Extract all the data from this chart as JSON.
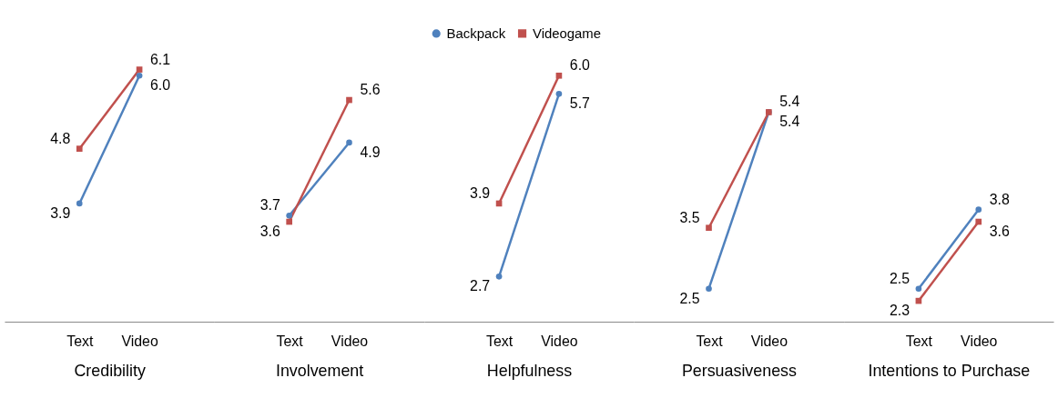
{
  "chart_data": [
    {
      "type": "line",
      "xlabel": "Credibility",
      "categories": [
        "Text",
        "Video"
      ],
      "legend": "top",
      "grid": false,
      "series": [
        {
          "name": "Backpack",
          "color": "#4f81bd",
          "marker": "circle",
          "values": [
            3.9,
            6.0
          ],
          "value_labels": [
            "3.9",
            "6.0"
          ]
        },
        {
          "name": "Videogame",
          "color": "#c0504d",
          "marker": "square",
          "values": [
            4.8,
            6.1
          ],
          "value_labels": [
            "4.8",
            "6.1"
          ]
        }
      ]
    },
    {
      "type": "line",
      "xlabel": "Involvement",
      "categories": [
        "Text",
        "Video"
      ],
      "legend": "top",
      "grid": false,
      "series": [
        {
          "name": "Backpack",
          "color": "#4f81bd",
          "marker": "circle",
          "values": [
            3.7,
            4.9
          ],
          "value_labels": [
            "3.7",
            "4.9"
          ]
        },
        {
          "name": "Videogame",
          "color": "#c0504d",
          "marker": "square",
          "values": [
            3.6,
            5.6
          ],
          "value_labels": [
            "3.6",
            "5.6"
          ]
        }
      ]
    },
    {
      "type": "line",
      "xlabel": "Helpfulness",
      "categories": [
        "Text",
        "Video"
      ],
      "legend": "top",
      "grid": false,
      "series": [
        {
          "name": "Backpack",
          "color": "#4f81bd",
          "marker": "circle",
          "values": [
            2.7,
            5.7
          ],
          "value_labels": [
            "2.7",
            "5.7"
          ]
        },
        {
          "name": "Videogame",
          "color": "#c0504d",
          "marker": "square",
          "values": [
            3.9,
            6.0
          ],
          "value_labels": [
            "3.9",
            "6.0"
          ]
        }
      ]
    },
    {
      "type": "line",
      "xlabel": "Persuasiveness",
      "categories": [
        "Text",
        "Video"
      ],
      "legend": "top",
      "grid": false,
      "series": [
        {
          "name": "Backpack",
          "color": "#4f81bd",
          "marker": "circle",
          "values": [
            2.5,
            5.4
          ],
          "value_labels": [
            "2.5",
            "5.4"
          ]
        },
        {
          "name": "Videogame",
          "color": "#c0504d",
          "marker": "square",
          "values": [
            3.5,
            5.4
          ],
          "value_labels": [
            "3.5",
            "5.4"
          ]
        }
      ]
    },
    {
      "type": "line",
      "xlabel": "Intentions to Purchase",
      "categories": [
        "Text",
        "Video"
      ],
      "legend": "top",
      "grid": false,
      "series": [
        {
          "name": "Backpack",
          "color": "#4f81bd",
          "marker": "circle",
          "values": [
            2.5,
            3.8
          ],
          "value_labels": [
            "2.5",
            "3.8"
          ]
        },
        {
          "name": "Videogame",
          "color": "#c0504d",
          "marker": "square",
          "values": [
            2.3,
            3.6
          ],
          "value_labels": [
            "2.3",
            "3.6"
          ]
        }
      ]
    }
  ]
}
